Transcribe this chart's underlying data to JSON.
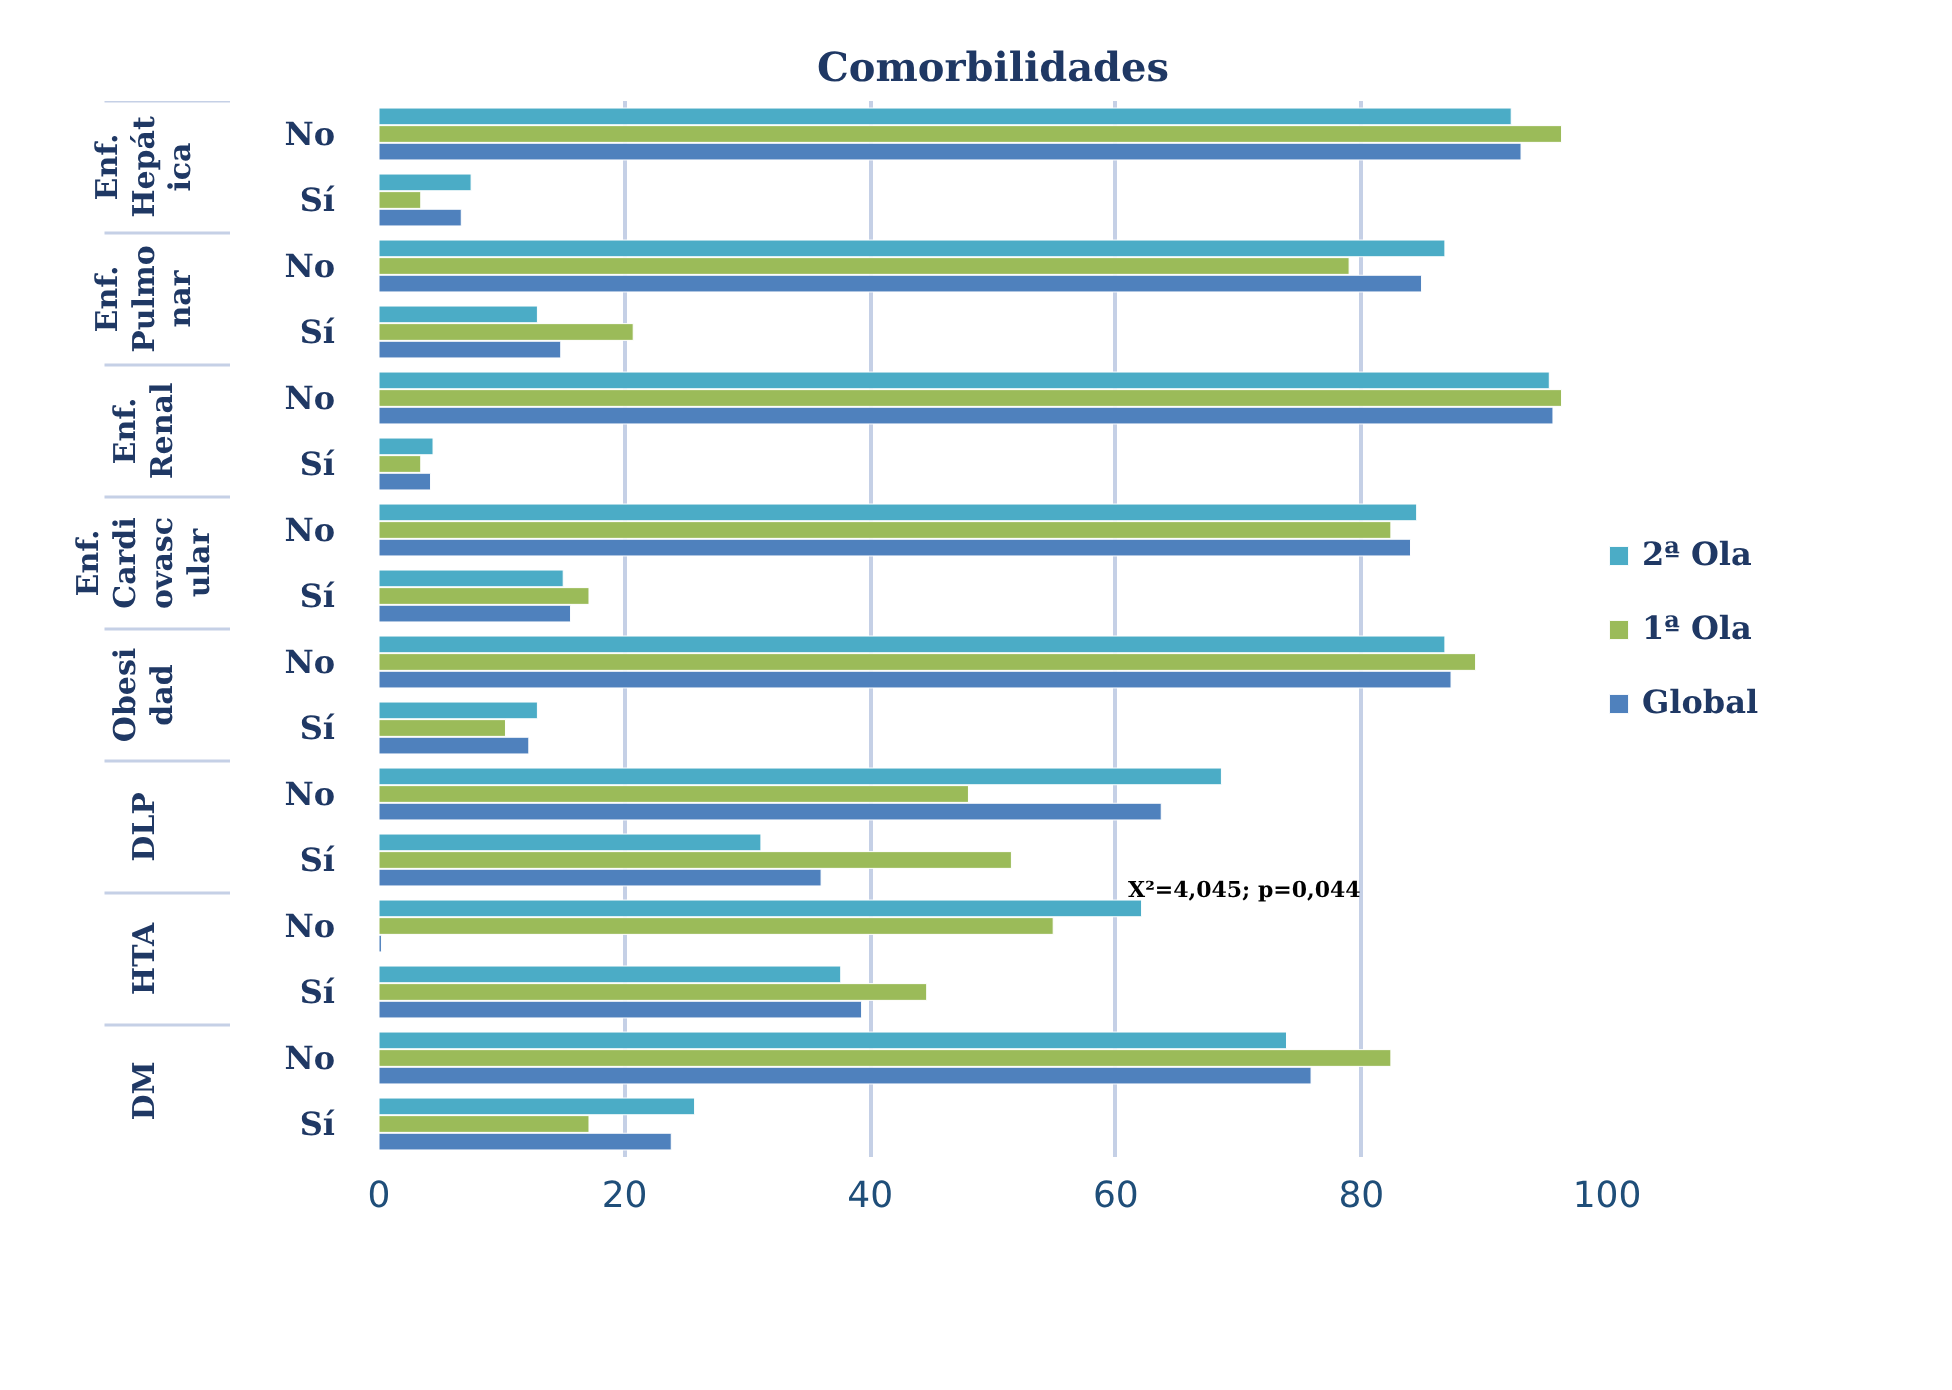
{
  "chart_data": {
    "type": "bar",
    "orientation": "horizontal",
    "title": "Comorbilidades",
    "categories": [
      "No",
      "Sí",
      "No",
      "Sí",
      "No",
      "Sí",
      "No",
      "Sí",
      "No",
      "Sí",
      "No",
      "Sí",
      "No",
      "Sí",
      "No",
      "Sí"
    ],
    "series": [
      {
        "name": "2ª Ola",
        "color": "#4bacc6",
        "values": [
          92.2,
          7.5,
          86.8,
          12.9,
          95.3,
          4.4,
          84.5,
          15.0,
          86.8,
          12.9,
          68.6,
          31.1,
          62.1,
          37.6,
          73.9,
          25.7
        ]
      },
      {
        "name": "1ª Ola",
        "color": "#9bbb59",
        "values": [
          96.3,
          3.4,
          79.0,
          20.7,
          96.3,
          3.4,
          82.4,
          17.1,
          89.3,
          10.3,
          48.0,
          51.5,
          54.9,
          44.6,
          82.4,
          17.1
        ]
      },
      {
        "name": "Global",
        "color": "#4f81bd",
        "values": [
          93.0,
          6.7,
          84.9,
          14.8,
          95.6,
          4.2,
          84.0,
          15.6,
          87.3,
          12.2,
          63.7,
          36.0,
          0.2,
          39.3,
          75.9,
          23.8
        ]
      }
    ],
    "annotations": [
      "Enf. Hepática",
      "Enf. Pulmonar",
      "Enf. Renal",
      "Enf. Cardiovascular",
      "Obesidad",
      "DLP",
      "HTA",
      "DM",
      "X²=4,045; p=0,044"
    ],
    "xlim": [
      0,
      100
    ],
    "xticks": [
      0,
      20,
      40,
      60,
      80,
      100
    ],
    "grid": "x",
    "legend": "right"
  }
}
